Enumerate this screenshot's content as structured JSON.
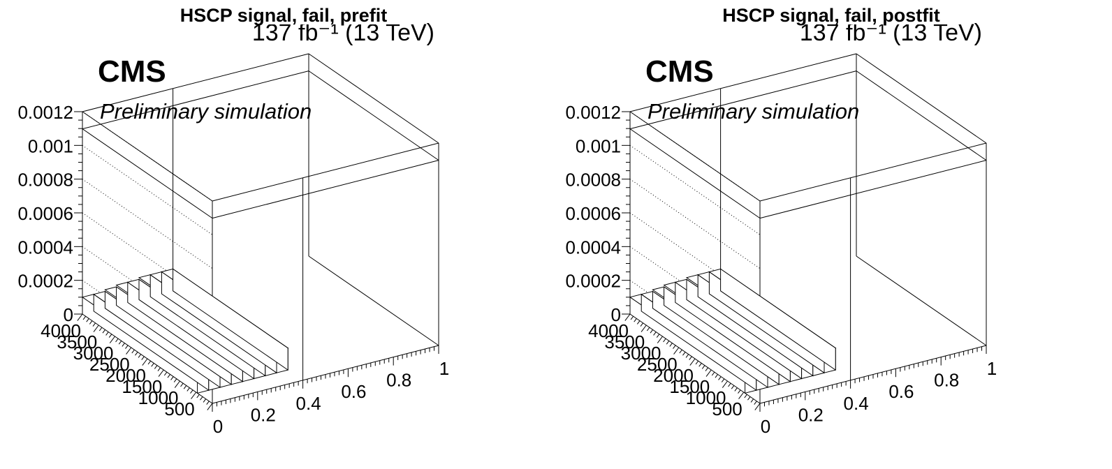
{
  "chart_data": [
    {
      "type": "lego3d",
      "title": "HSCP signal, fail, prefit",
      "lumi_label": "137 fb⁻¹ (13 TeV)",
      "cms_label": "CMS",
      "extra_label": "Preliminary simulation",
      "xlabel": "",
      "ylabel": "",
      "zlabel": "",
      "x_range": [
        0,
        1
      ],
      "y_range": [
        0,
        4000
      ],
      "z_range": [
        0,
        0.0012
      ],
      "x_ticks": [
        "0",
        "0.2",
        "0.4",
        "0.6",
        "0.8",
        "1"
      ],
      "y_ticks": [
        "500",
        "1000",
        "1500",
        "2000",
        "2500",
        "3000",
        "3500",
        "4000"
      ],
      "z_ticks": [
        "0",
        "0.0002",
        "0.0004",
        "0.0006",
        "0.0008",
        "0.001",
        "0.0012"
      ],
      "x_bin_edges": [
        0,
        0.05,
        0.1,
        0.15,
        0.2,
        0.25,
        0.3,
        0.35,
        0.4
      ],
      "column_heights": [
        0.0001,
        0.0001,
        0.00011,
        0.00012,
        0.00012,
        0.00013,
        0.00013,
        0.00013
      ],
      "grid": true
    },
    {
      "type": "lego3d",
      "title": "HSCP signal, fail, postfit",
      "lumi_label": "137 fb⁻¹ (13 TeV)",
      "cms_label": "CMS",
      "extra_label": "Preliminary simulation",
      "xlabel": "",
      "ylabel": "",
      "zlabel": "",
      "x_range": [
        0,
        1
      ],
      "y_range": [
        0,
        4000
      ],
      "z_range": [
        0,
        0.0012
      ],
      "x_ticks": [
        "0",
        "0.2",
        "0.4",
        "0.6",
        "0.8",
        "1"
      ],
      "y_ticks": [
        "500",
        "1000",
        "1500",
        "2000",
        "2500",
        "3000",
        "3500",
        "4000"
      ],
      "z_ticks": [
        "0",
        "0.0002",
        "0.0004",
        "0.0006",
        "0.0008",
        "0.001",
        "0.0012"
      ],
      "x_bin_edges": [
        0,
        0.05,
        0.1,
        0.15,
        0.2,
        0.25,
        0.3,
        0.35,
        0.4
      ],
      "column_heights": [
        0.0001,
        0.0001,
        0.00011,
        0.00012,
        0.00012,
        0.00013,
        0.00013,
        0.00013
      ],
      "grid": true
    }
  ]
}
